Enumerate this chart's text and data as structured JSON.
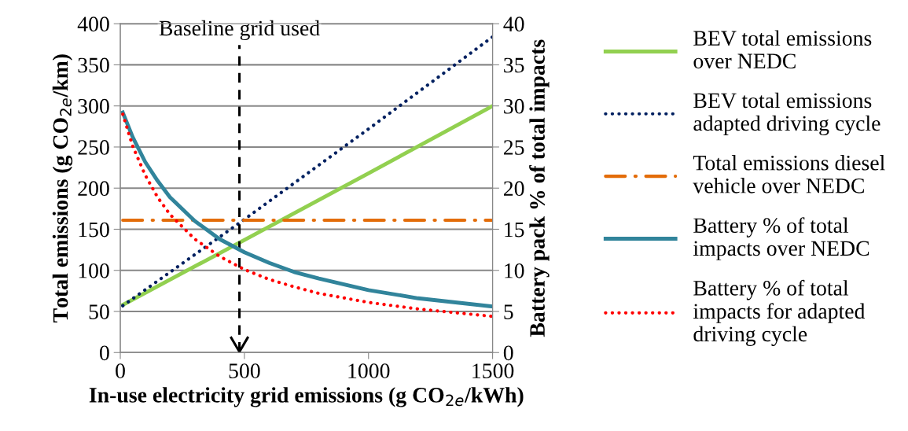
{
  "chart_data": {
    "type": "line",
    "xlabel": "In-use electricity grid emissions (g CO$_{2e}$/kWh)",
    "ylabel": "Total emissions (g CO$_{2e}$/km)",
    "y2label": "Battery pack % of total impacts",
    "xlim": [
      0,
      1500
    ],
    "xticks": [
      0,
      500,
      1000,
      1500
    ],
    "ylim": [
      0,
      400
    ],
    "yticks": [
      0,
      50,
      100,
      150,
      200,
      250,
      300,
      350,
      400
    ],
    "y2lim": [
      0,
      40
    ],
    "y2ticks": [
      0,
      5,
      10,
      15,
      20,
      25,
      30,
      35,
      40
    ],
    "grid": "y",
    "legend": "right",
    "series": [
      {
        "name": "BEV total emissions\nover NEDC",
        "color": "#92d050",
        "line_style": "solid",
        "x": [
          10,
          500,
          1000,
          1500
        ],
        "values": [
          58,
          137,
          218,
          300
        ]
      },
      {
        "name": "BEV total emissions\nadapted driving cycle",
        "color": "#002060",
        "line_style": "dotted",
        "x": [
          10,
          500,
          1000,
          1500
        ],
        "values": [
          57,
          162,
          272,
          384
        ]
      },
      {
        "name": "Total emissions diesel\nvehicle over NEDC",
        "color": "#e36c09",
        "line_style": "dashdot",
        "x": [
          10,
          1500
        ],
        "values": [
          161,
          161
        ]
      },
      {
        "name": "Battery % of total\nimpacts over NEDC",
        "color": "#31849b",
        "line_style": "solid",
        "axis": "y2",
        "x": [
          10,
          50,
          100,
          150,
          200,
          300,
          400,
          500,
          600,
          700,
          800,
          1000,
          1200,
          1500
        ],
        "values": [
          29.2,
          26.2,
          23.2,
          20.9,
          18.9,
          16.0,
          13.8,
          12.2,
          10.9,
          9.8,
          9.0,
          7.6,
          6.6,
          5.6
        ]
      },
      {
        "name": "Battery % of total\nimpacts for adapted\ndriving cycle",
        "color": "#ff0000",
        "line_style": "dotted",
        "axis": "y2",
        "x": [
          10,
          50,
          100,
          150,
          200,
          300,
          400,
          500,
          600,
          700,
          800,
          1000,
          1200,
          1500
        ],
        "values": [
          29.0,
          25.1,
          21.6,
          18.9,
          16.8,
          13.8,
          11.7,
          10.1,
          8.9,
          8.0,
          7.2,
          6.1,
          5.3,
          4.4
        ]
      }
    ],
    "ref_lines": [
      {
        "axis": "x",
        "value": 480,
        "label": "Baseline grid used",
        "color": "#000000",
        "line_style": "dashed"
      }
    ]
  }
}
